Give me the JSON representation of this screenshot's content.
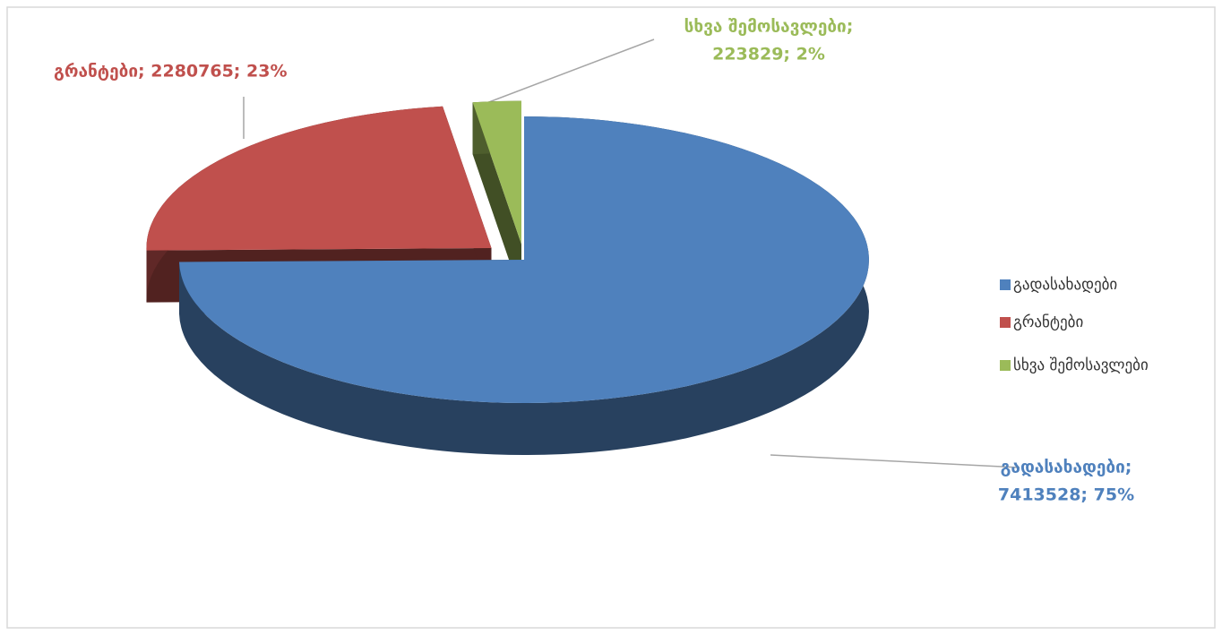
{
  "chart_data": {
    "type": "pie",
    "categories": [
      "გადასახადები",
      "გრანტები",
      "სხვა შემოსავლები"
    ],
    "values": [
      7413528,
      2280765,
      223829
    ],
    "data_labels": [
      [
        "გადასახადები;",
        "7413528; 75%"
      ],
      [
        "გრანტები; 2280765; 23%"
      ],
      [
        "სხვა შემოსავლები;",
        "223829; 2%"
      ]
    ],
    "colors": [
      "#4f81bd",
      "#c0504d",
      "#9bbb59"
    ],
    "legend": "right"
  }
}
